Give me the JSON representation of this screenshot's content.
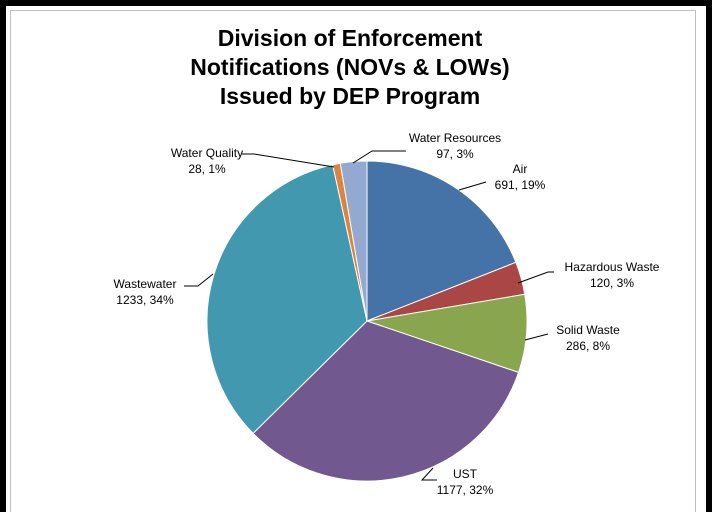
{
  "chart_data": {
    "type": "pie",
    "title_lines": [
      "Division of Enforcement",
      "Notifications (NOVs & LOWs)",
      "Issued by DEP Program"
    ],
    "slices": [
      {
        "name": "Air",
        "value": 691,
        "pct": "19%",
        "label": "691, 19%",
        "color": "#4572a7"
      },
      {
        "name": "Hazardous Waste",
        "value": 120,
        "pct": "3%",
        "label": "120, 3%",
        "color": "#aa4643"
      },
      {
        "name": "Solid Waste",
        "value": 286,
        "pct": "8%",
        "label": "286, 8%",
        "color": "#89a54e"
      },
      {
        "name": "UST",
        "value": 1177,
        "pct": "32%",
        "label": "1177, 32%",
        "color": "#71588f"
      },
      {
        "name": "Wastewater",
        "value": 1233,
        "pct": "34%",
        "label": "1233, 34%",
        "color": "#4198af"
      },
      {
        "name": "Water Quality",
        "value": 28,
        "pct": "1%",
        "label": "28, 1%",
        "color": "#db843d"
      },
      {
        "name": "Water Resources",
        "value": 97,
        "pct": "3%",
        "label": "97, 3%",
        "color": "#93a9cf"
      }
    ],
    "start_angle": "12 o'clock",
    "direction": "clockwise",
    "legend": "none",
    "data_labels": "outside with leader lines"
  }
}
